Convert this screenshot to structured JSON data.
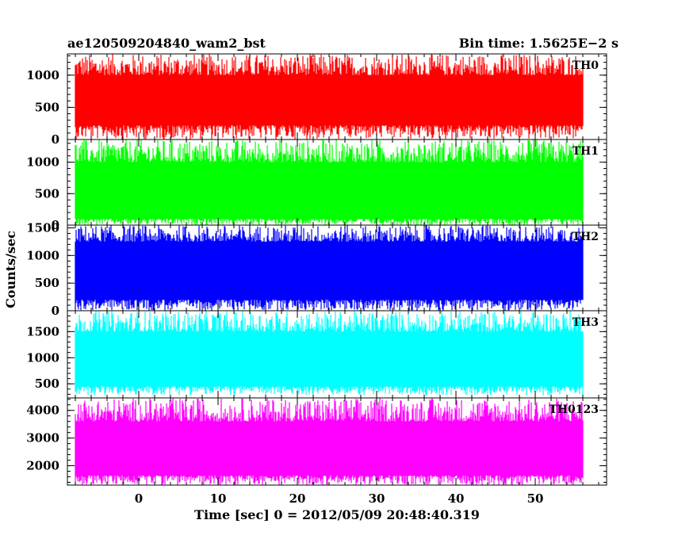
{
  "chart_data": {
    "type": "line",
    "title_left": "ae120509204840_wam2_bst",
    "title_right": "Bin time: 1.5625E−2 s",
    "xlabel": "Time [sec] 0 = 2012/05/09 20:48:40.319",
    "ylabel": "Counts/sec",
    "xlim": [
      -9,
      59
    ],
    "xticks": [
      0,
      10,
      20,
      30,
      40,
      50
    ],
    "xtick_labels": [
      "0",
      "10",
      "20",
      "30",
      "40",
      "50"
    ],
    "data_x_range": [
      -8,
      56
    ],
    "grid": false,
    "panels": [
      {
        "name": "TH0",
        "color": "#ff0000",
        "ylim": [
          0,
          1330
        ],
        "yticks": [
          0,
          500,
          1000
        ],
        "ytick_labels": [
          "0",
          "500",
          "1000"
        ],
        "ytick_labels_visible": [
          true,
          true,
          true
        ],
        "band_low": 220,
        "band_high": 1000,
        "min": 0,
        "max": 1330
      },
      {
        "name": "TH1",
        "color": "#00ff00",
        "ylim": [
          0,
          1360
        ],
        "yticks": [
          0,
          500,
          1000
        ],
        "ytick_labels": [
          "0",
          "500",
          "1000"
        ],
        "ytick_labels_visible": [
          true,
          true,
          true
        ],
        "band_low": 100,
        "band_high": 1000,
        "min": 0,
        "max": 1360
      },
      {
        "name": "TH2",
        "color": "#0000ff",
        "ylim": [
          0,
          1550
        ],
        "yticks": [
          0,
          500,
          1000,
          1500
        ],
        "ytick_labels": [
          "0",
          "500",
          "1000",
          "1500"
        ],
        "ytick_labels_visible": [
          true,
          true,
          true,
          true
        ],
        "band_low": 200,
        "band_high": 1250,
        "min": 0,
        "max": 1550
      },
      {
        "name": "TH3",
        "color": "#00ffff",
        "ylim": [
          230,
          1900
        ],
        "yticks": [
          500,
          1000,
          1500
        ],
        "ytick_labels": [
          "500",
          "1000",
          "1500"
        ],
        "ytick_labels_visible": [
          true,
          true,
          true
        ],
        "band_low": 450,
        "band_high": 1500,
        "min": 280,
        "max": 1900
      },
      {
        "name": "TH0123",
        "color": "#ff00ff",
        "ylim": [
          1300,
          4450
        ],
        "yticks": [
          2000,
          3000,
          4000
        ],
        "ytick_labels": [
          "2000",
          "3000",
          "4000"
        ],
        "ytick_labels_visible": [
          true,
          true,
          true
        ],
        "band_low": 1650,
        "band_high": 3600,
        "min": 1300,
        "max": 4450
      }
    ]
  }
}
